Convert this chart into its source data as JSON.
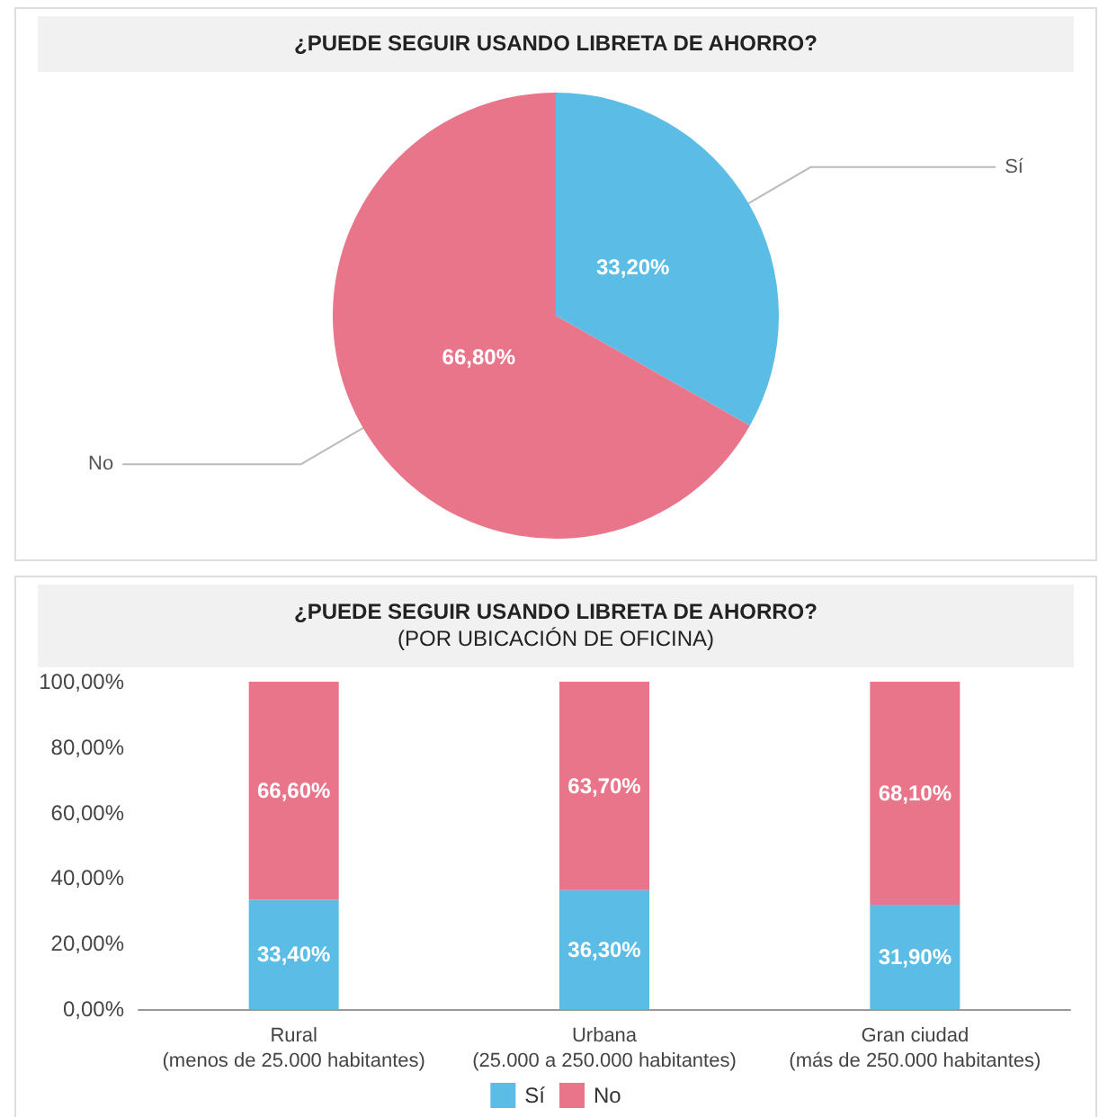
{
  "chart_data": [
    {
      "type": "pie",
      "title": "¿PUEDE SEGUIR USANDO LIBRETA DE AHORRO?",
      "categories": [
        "Sí",
        "No"
      ],
      "values": [
        33.2,
        66.8
      ],
      "colors": [
        "#5bbde6",
        "#e9758a"
      ],
      "value_labels": [
        "33,20%",
        "66,80%"
      ],
      "legend": false
    },
    {
      "type": "bar",
      "stacked": true,
      "title": "¿PUEDE SEGUIR USANDO LIBRETA DE AHORRO?",
      "subtitle": "(POR UBICACIÓN DE OFICINA)",
      "categories": [
        "Rural\n(menos de 25.000 habitantes)",
        "Urbana\n(25.000 a 250.000 habitantes)",
        "Gran ciudad\n(más de 250.000 habitantes)"
      ],
      "series": [
        {
          "name": "Sí",
          "color": "#5bbde6",
          "values": [
            33.4,
            36.3,
            31.9
          ],
          "value_labels": [
            "33,40%",
            "36,30%",
            "31,90%"
          ]
        },
        {
          "name": "No",
          "color": "#e9758a",
          "values": [
            66.6,
            63.7,
            68.1
          ],
          "value_labels": [
            "66,60%",
            "63,70%",
            "68,10%"
          ]
        }
      ],
      "ylim": [
        0,
        100
      ],
      "yticks": [
        {
          "value": 0,
          "label": "0,00%"
        },
        {
          "value": 20,
          "label": "20,00%"
        },
        {
          "value": 40,
          "label": "40,00%"
        },
        {
          "value": 60,
          "label": "60,00%"
        },
        {
          "value": 80,
          "label": "80,00%"
        },
        {
          "value": 100,
          "label": "100,00%"
        }
      ],
      "grid": false,
      "legend": "bottom"
    }
  ]
}
